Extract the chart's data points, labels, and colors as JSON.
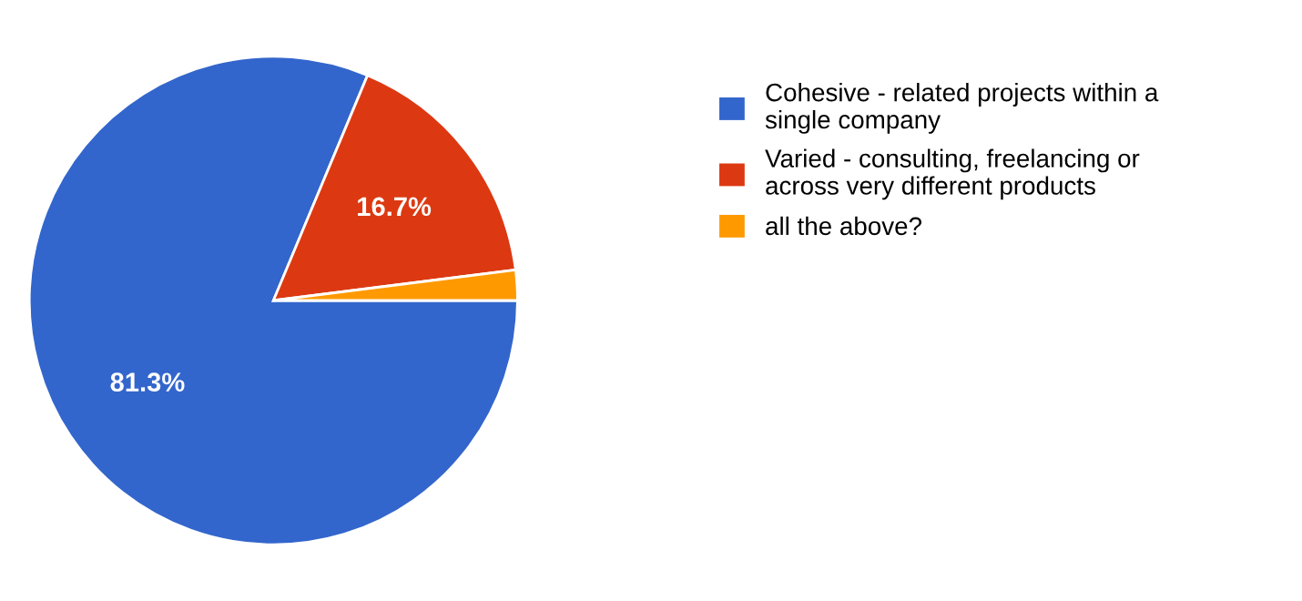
{
  "chart_data": {
    "type": "pie",
    "categories": [
      "Cohesive - related projects within a single company",
      "Varied - consulting, freelancing or across very different products",
      "all the above?"
    ],
    "values": [
      81.3,
      16.7,
      2.0
    ],
    "colors": [
      "#3366cc",
      "#dc3912",
      "#ff9900"
    ],
    "value_labels": [
      "81.3%",
      "16.7%",
      null
    ],
    "legend": "right"
  }
}
